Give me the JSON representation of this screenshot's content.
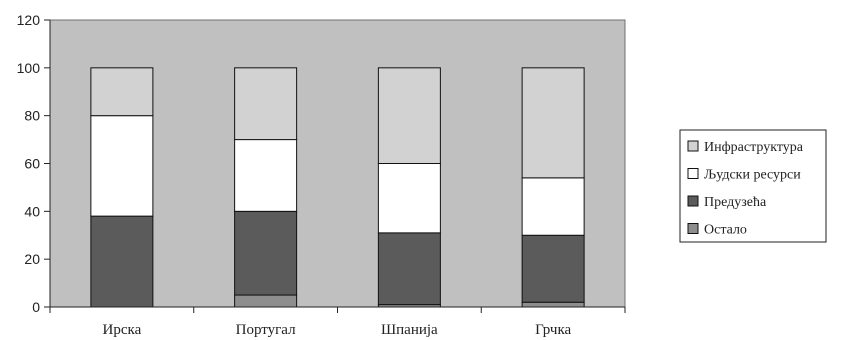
{
  "chart_data": {
    "type": "bar",
    "stacked": true,
    "categories": [
      "Ирска",
      "Португал",
      "Шпанија",
      "Грчка"
    ],
    "series": [
      {
        "name": "Остало",
        "values": [
          0,
          5,
          1,
          2
        ]
      },
      {
        "name": "Предузећа",
        "values": [
          38,
          35,
          30,
          28
        ]
      },
      {
        "name": "Људски ресурси",
        "values": [
          42,
          30,
          29,
          24
        ]
      },
      {
        "name": "Инфраструктура",
        "values": [
          20,
          30,
          40,
          46
        ]
      }
    ],
    "legend_order": [
      "Инфраструктура",
      "Људски ресурси",
      "Предузећа",
      "Остало"
    ],
    "y_ticks": [
      "0",
      "20",
      "40",
      "60",
      "80",
      "100",
      "120"
    ],
    "ylim": [
      0,
      120
    ],
    "legend_position": "right",
    "grid": false,
    "colors": {
      "plot_background": "#c0c0c0",
      "Остало": "#8e8e8e",
      "Предузећа": "#5b5b5b",
      "Људски ресурси": "#ffffff",
      "Инфраструктура": "#d2d2d2"
    }
  }
}
